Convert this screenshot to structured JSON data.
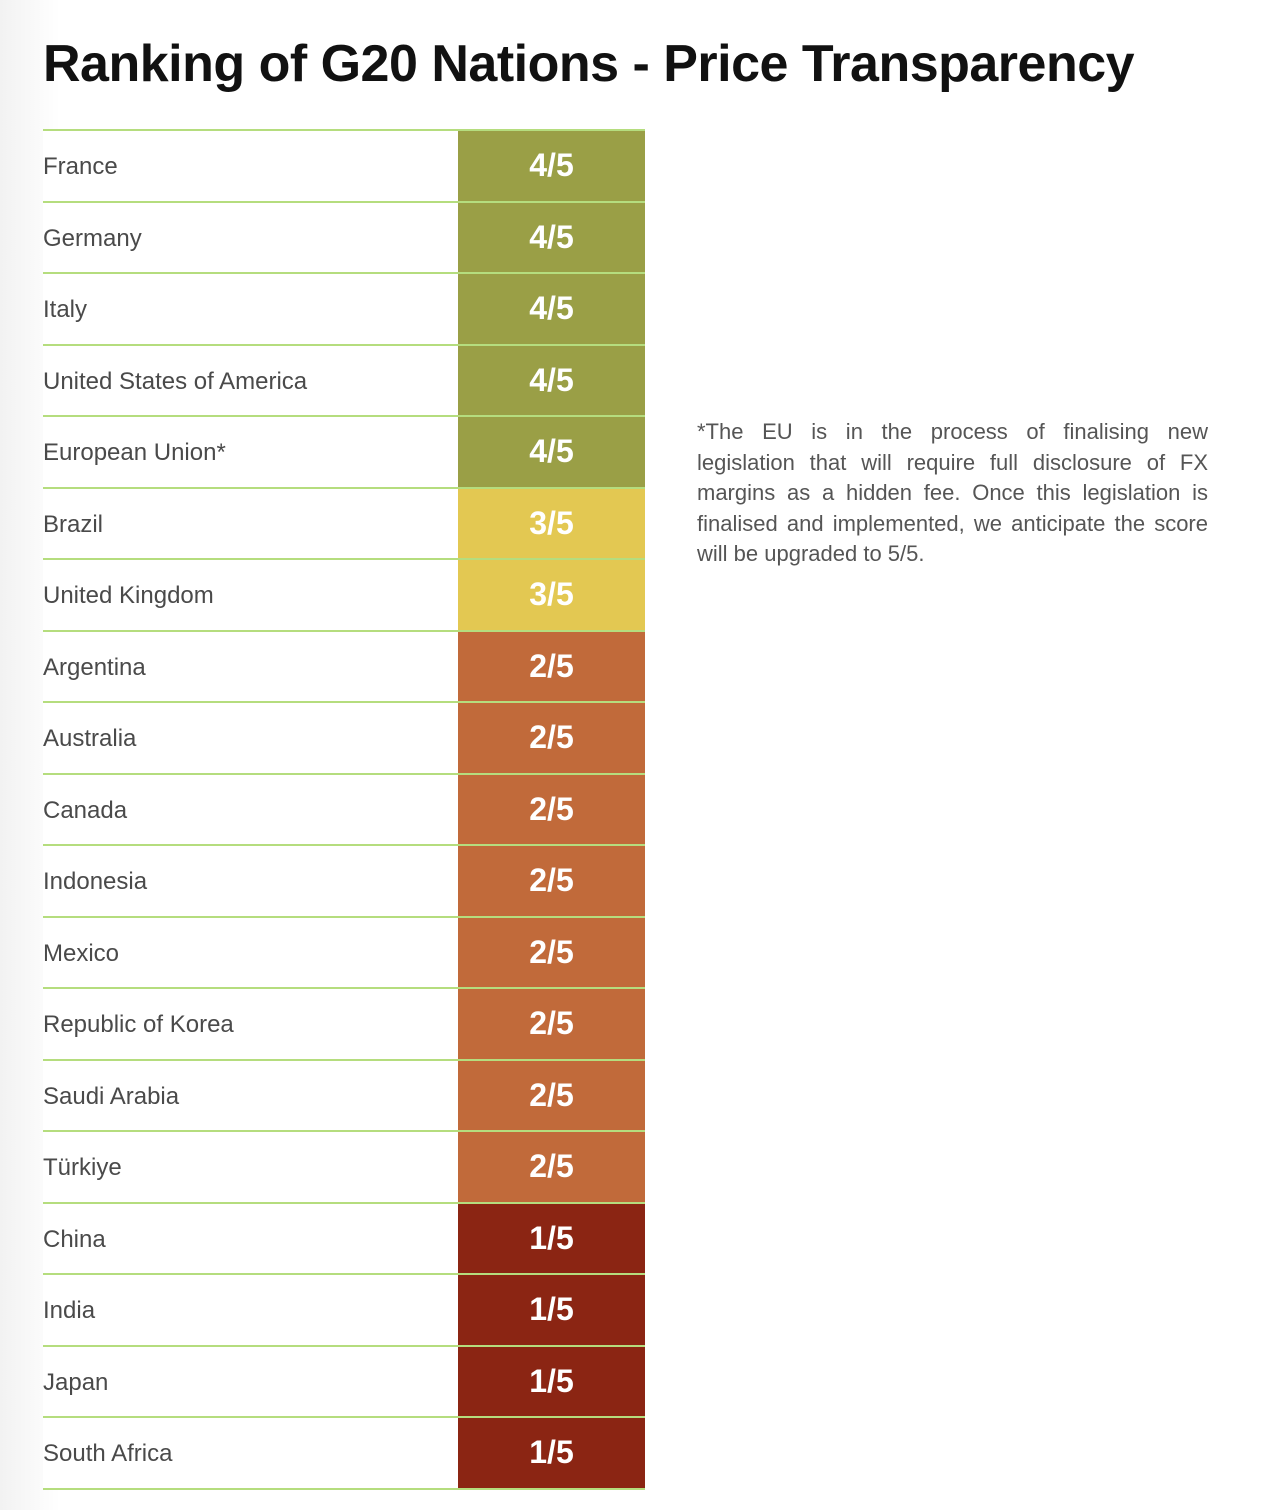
{
  "chart_data": {
    "type": "table",
    "title": "Ranking of G20 Nations - Price Transparency",
    "rows": [
      {
        "country": "France",
        "score": 4,
        "label": "4/5"
      },
      {
        "country": "Germany",
        "score": 4,
        "label": "4/5"
      },
      {
        "country": "Italy",
        "score": 4,
        "label": "4/5"
      },
      {
        "country": "United States of America",
        "score": 4,
        "label": "4/5"
      },
      {
        "country": "European Union*",
        "score": 4,
        "label": "4/5"
      },
      {
        "country": "Brazil",
        "score": 3,
        "label": "3/5"
      },
      {
        "country": "United Kingdom",
        "score": 3,
        "label": "3/5"
      },
      {
        "country": "Argentina",
        "score": 2,
        "label": "2/5"
      },
      {
        "country": "Australia",
        "score": 2,
        "label": "2/5"
      },
      {
        "country": "Canada",
        "score": 2,
        "label": "2/5"
      },
      {
        "country": "Indonesia",
        "score": 2,
        "label": "2/5"
      },
      {
        "country": "Mexico",
        "score": 2,
        "label": "2/5"
      },
      {
        "country": "Republic of Korea",
        "score": 2,
        "label": "2/5"
      },
      {
        "country": "Saudi Arabia",
        "score": 2,
        "label": "2/5"
      },
      {
        "country": "Türkiye",
        "score": 2,
        "label": "2/5"
      },
      {
        "country": "China",
        "score": 1,
        "label": "1/5"
      },
      {
        "country": "India",
        "score": 1,
        "label": "1/5"
      },
      {
        "country": "Japan",
        "score": 1,
        "label": "1/5"
      },
      {
        "country": "South Africa",
        "score": 1,
        "label": "1/5"
      }
    ],
    "score_colors": {
      "4": "#9a9f46",
      "3": "#e3c852",
      "2": "#c16a3a",
      "1": "#8b2513"
    },
    "row_divider_color": "#b5dd7e",
    "footnote": "*The EU is in the process of finalising new legislation that will require full disclosure of FX margins as a hidden fee. Once this legislation is finalised and implemented, we anticipate the score will be upgraded to 5/5."
  }
}
